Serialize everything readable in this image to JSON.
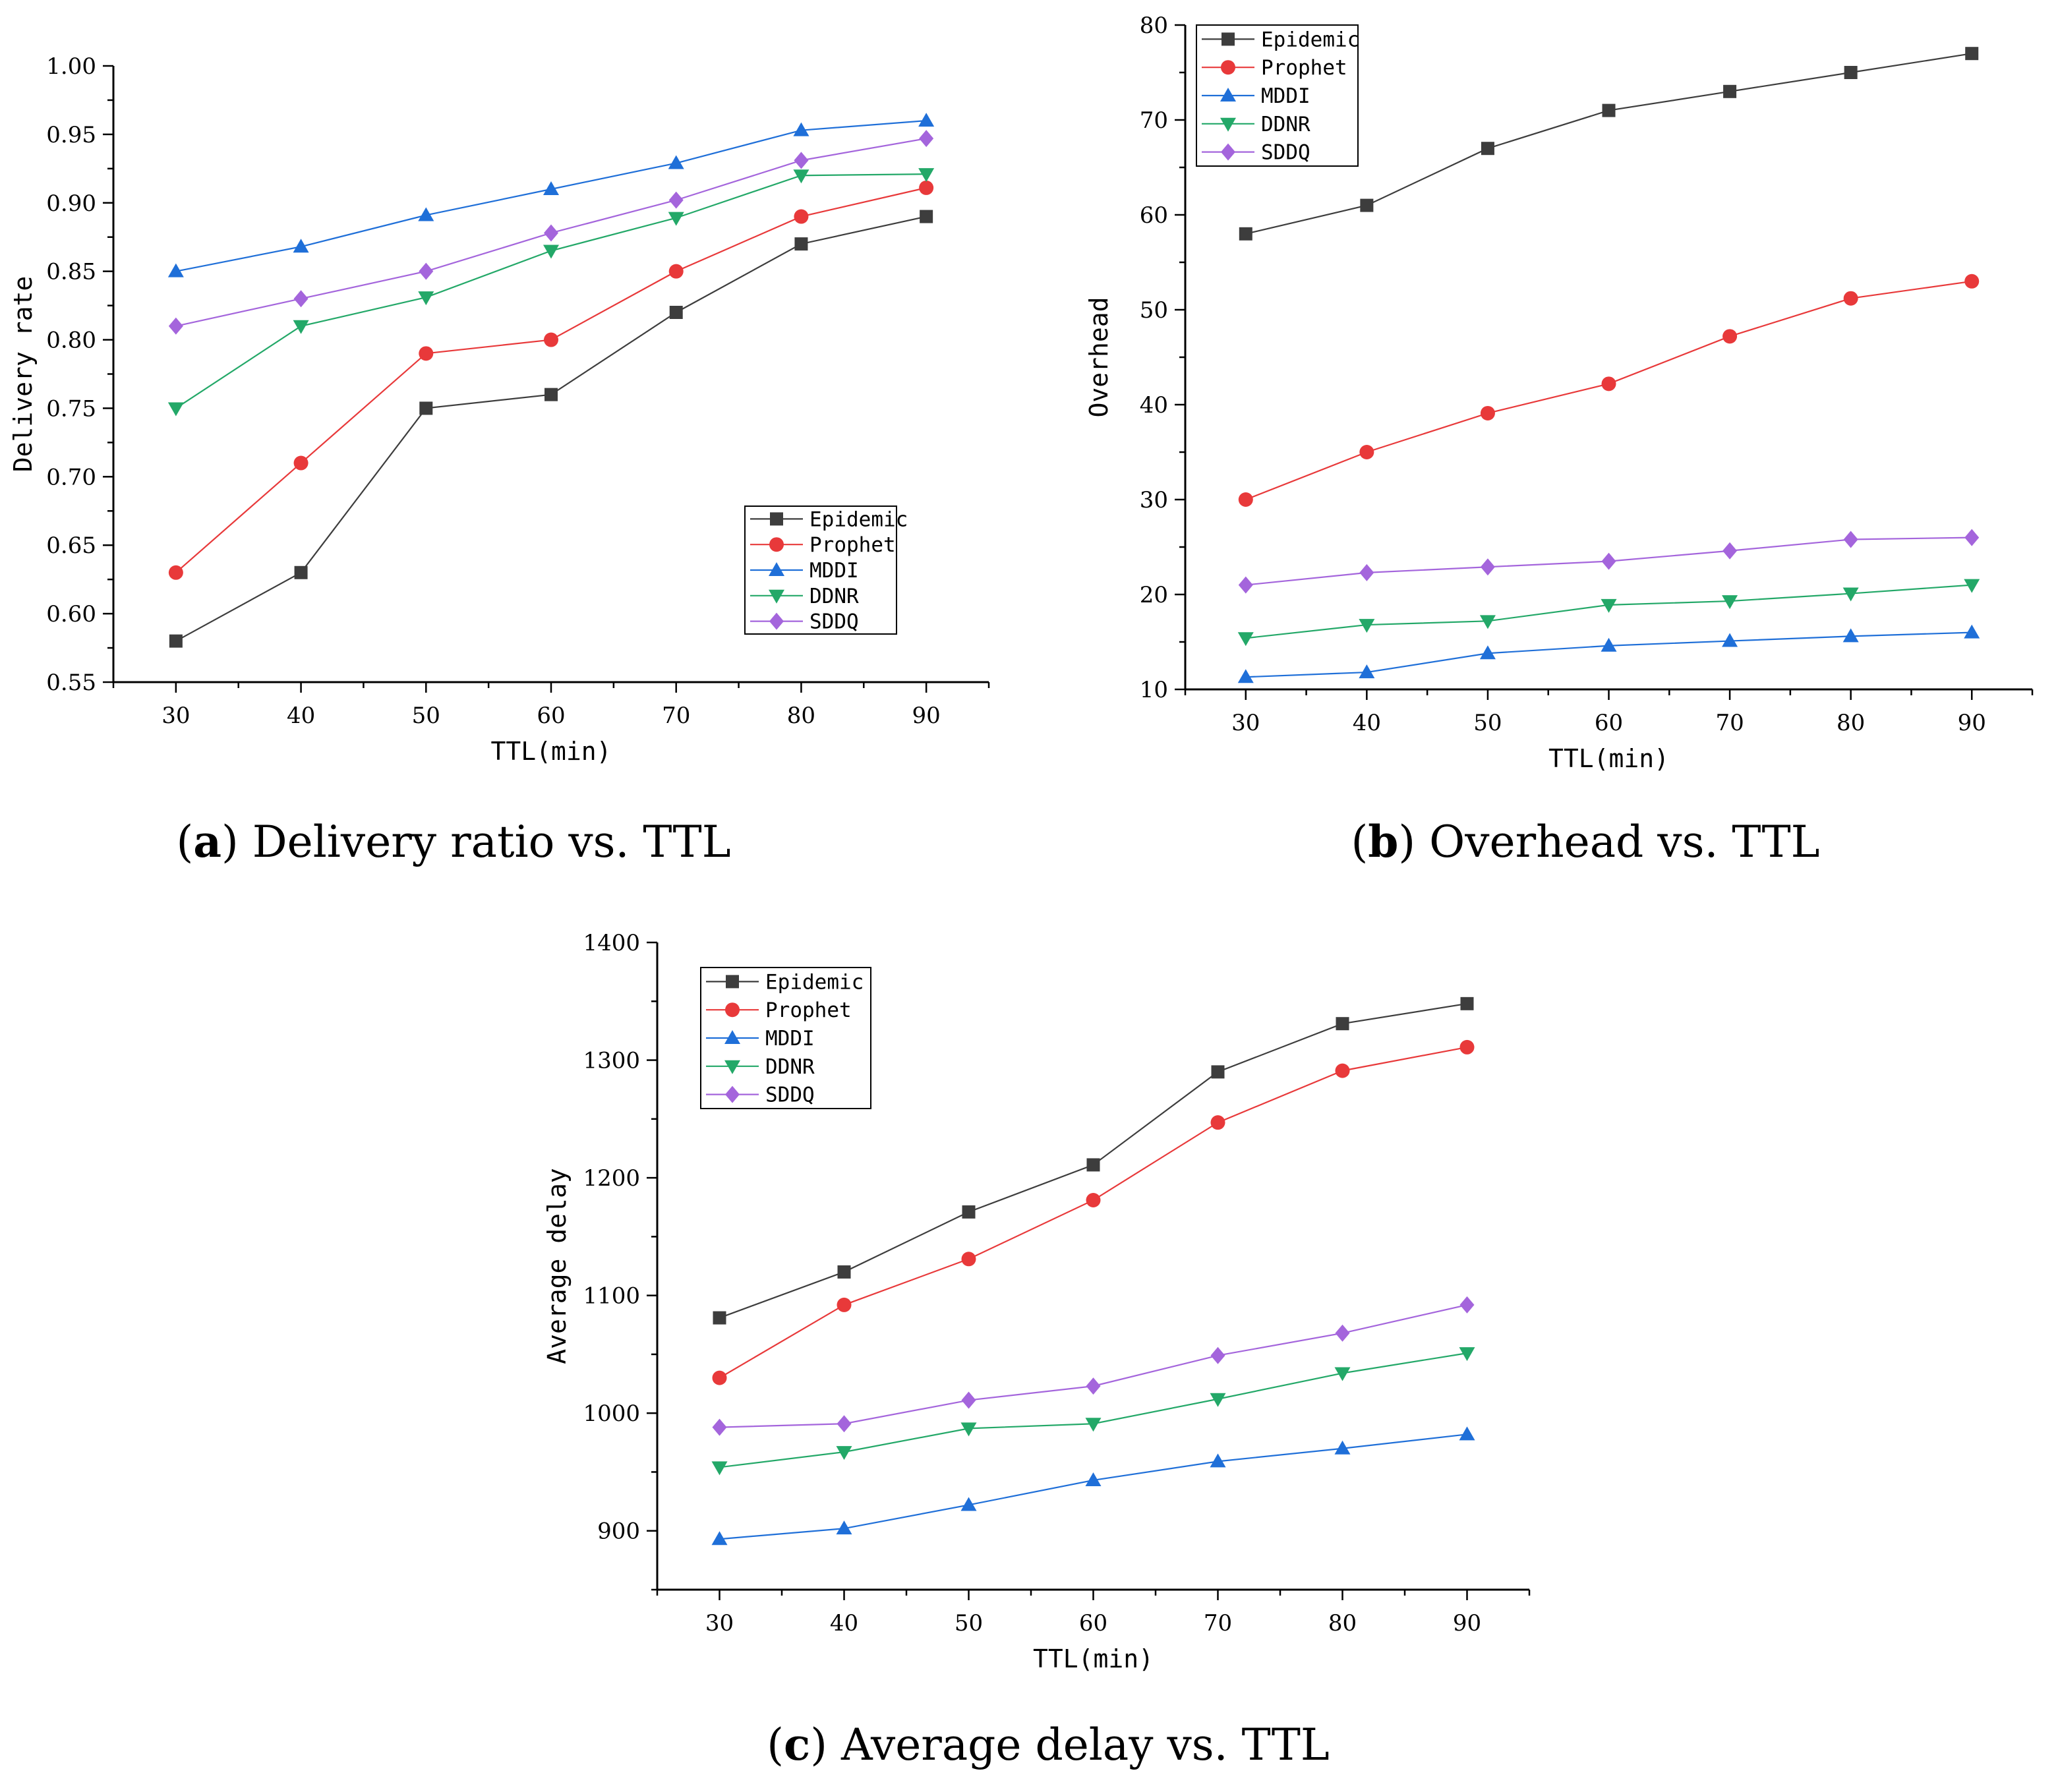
{
  "panels": [
    {
      "caption_letter": "a",
      "caption_text": "Delivery ratio vs. TTL"
    },
    {
      "caption_letter": "b",
      "caption_text": "Overhead vs. TTL"
    },
    {
      "caption_letter": "c",
      "caption_text": "Average delay vs. TTL"
    }
  ],
  "series_styles": [
    {
      "name": "Epidemic",
      "color": "#3d3d3d",
      "marker": "square"
    },
    {
      "name": "Prophet",
      "color": "#e8393a",
      "marker": "circle"
    },
    {
      "name": "MDDI",
      "color": "#1f6fd8",
      "marker": "triangle-up"
    },
    {
      "name": "DDNR",
      "color": "#23a868",
      "marker": "triangle-down"
    },
    {
      "name": "SDDQ",
      "color": "#a465dc",
      "marker": "diamond"
    }
  ],
  "chart_data": [
    {
      "type": "line",
      "xlabel": "TTL(min)",
      "ylabel": "Delivery rate",
      "x": [
        30,
        40,
        50,
        60,
        70,
        80,
        90
      ],
      "xlim": [
        25,
        95
      ],
      "ylim": [
        0.55,
        1.0
      ],
      "xticks": [
        "30",
        "40",
        "50",
        "60",
        "70",
        "80",
        "90"
      ],
      "yticks": [
        "0.55",
        "0.60",
        "0.65",
        "0.70",
        "0.75",
        "0.80",
        "0.85",
        "0.90",
        "0.95",
        "1.00"
      ],
      "legend_position": "bottom-right",
      "grid": false,
      "series": [
        {
          "name": "Epidemic",
          "values": [
            0.58,
            0.63,
            0.75,
            0.76,
            0.82,
            0.87,
            0.89
          ]
        },
        {
          "name": "Prophet",
          "values": [
            0.63,
            0.71,
            0.79,
            0.8,
            0.85,
            0.89,
            0.911
          ]
        },
        {
          "name": "MDDI",
          "values": [
            0.85,
            0.868,
            0.891,
            0.91,
            0.929,
            0.953,
            0.96
          ]
        },
        {
          "name": "DDNR",
          "values": [
            0.75,
            0.81,
            0.831,
            0.865,
            0.889,
            0.92,
            0.921
          ]
        },
        {
          "name": "SDDQ",
          "values": [
            0.81,
            0.83,
            0.85,
            0.878,
            0.902,
            0.931,
            0.947
          ]
        }
      ]
    },
    {
      "type": "line",
      "xlabel": "TTL(min)",
      "ylabel": "Overhead",
      "x": [
        30,
        40,
        50,
        60,
        70,
        80,
        90
      ],
      "xlim": [
        25,
        95
      ],
      "ylim": [
        10,
        80
      ],
      "xticks": [
        "30",
        "40",
        "50",
        "60",
        "70",
        "80",
        "90"
      ],
      "yticks": [
        "10",
        "20",
        "30",
        "40",
        "50",
        "60",
        "70",
        "80"
      ],
      "legend_position": "top-left",
      "grid": false,
      "series": [
        {
          "name": "Epidemic",
          "values": [
            58,
            61,
            67,
            71,
            73,
            75,
            77
          ]
        },
        {
          "name": "Prophet",
          "values": [
            30,
            35,
            39.1,
            42.2,
            47.2,
            51.2,
            53
          ]
        },
        {
          "name": "MDDI",
          "values": [
            11.3,
            11.8,
            13.8,
            14.6,
            15.1,
            15.6,
            16
          ]
        },
        {
          "name": "DDNR",
          "values": [
            15.4,
            16.8,
            17.2,
            18.9,
            19.3,
            20.1,
            21
          ]
        },
        {
          "name": "SDDQ",
          "values": [
            21,
            22.3,
            22.9,
            23.5,
            24.6,
            25.8,
            26
          ]
        }
      ]
    },
    {
      "type": "line",
      "xlabel": "TTL(min)",
      "ylabel": "Average delay",
      "x": [
        30,
        40,
        50,
        60,
        70,
        80,
        90
      ],
      "xlim": [
        25,
        95
      ],
      "ylim": [
        850,
        1400
      ],
      "xticks": [
        "30",
        "40",
        "50",
        "60",
        "70",
        "80",
        "90"
      ],
      "yticks": [
        "900",
        "1000",
        "1100",
        "1200",
        "1300",
        "1400"
      ],
      "legend_position": "top-left",
      "grid": false,
      "series": [
        {
          "name": "Epidemic",
          "values": [
            1081,
            1120,
            1171,
            1211,
            1290,
            1331,
            1348
          ]
        },
        {
          "name": "Prophet",
          "values": [
            1030,
            1092,
            1131,
            1181,
            1247,
            1291,
            1311
          ]
        },
        {
          "name": "MDDI",
          "values": [
            893,
            902,
            922,
            943,
            959,
            970,
            982
          ]
        },
        {
          "name": "DDNR",
          "values": [
            954,
            967,
            987,
            991,
            1012,
            1034,
            1051
          ]
        },
        {
          "name": "SDDQ",
          "values": [
            988,
            991,
            1011,
            1023,
            1049,
            1068,
            1092
          ]
        }
      ]
    }
  ]
}
